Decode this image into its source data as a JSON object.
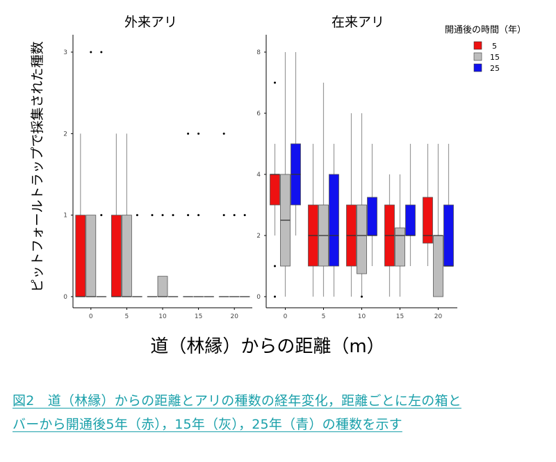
{
  "chart_data": [
    {
      "type": "boxplot",
      "title": "外来アリ",
      "ylim": [
        0,
        3
      ],
      "yticks": [
        "0",
        "1",
        "2",
        "3"
      ],
      "categories": [
        "0",
        "5",
        "10",
        "15",
        "20"
      ],
      "series": [
        {
          "name": "5",
          "color": "#ee1111",
          "boxes": [
            {
              "q1": 0,
              "median": 0,
              "q3": 1,
              "lo": 0,
              "hi": 2,
              "out": []
            },
            {
              "q1": 0,
              "median": 0,
              "q3": 1,
              "lo": 0,
              "hi": 2,
              "out": []
            },
            {
              "q1": 0,
              "median": 0,
              "q3": 0,
              "lo": 0,
              "hi": 0,
              "out": [
                1
              ]
            },
            {
              "q1": 0,
              "median": 0,
              "q3": 0,
              "lo": 0,
              "hi": 0,
              "out": [
                1,
                2
              ]
            },
            {
              "q1": 0,
              "median": 0,
              "q3": 0,
              "lo": 0,
              "hi": 0,
              "out": [
                1,
                2
              ]
            }
          ]
        },
        {
          "name": "15",
          "color": "#bdbdbd",
          "boxes": [
            {
              "q1": 0,
              "median": 0,
              "q3": 1,
              "lo": 0,
              "hi": 1,
              "out": [
                3
              ]
            },
            {
              "q1": 0,
              "median": 0,
              "q3": 1,
              "lo": 0,
              "hi": 2,
              "out": []
            },
            {
              "q1": 0,
              "median": 0,
              "q3": 0.25,
              "lo": 0,
              "hi": 0.25,
              "out": [
                1
              ]
            },
            {
              "q1": 0,
              "median": 0,
              "q3": 0,
              "lo": 0,
              "hi": 0,
              "out": [
                1,
                2
              ]
            },
            {
              "q1": 0,
              "median": 0,
              "q3": 0,
              "lo": 0,
              "hi": 0,
              "out": [
                1
              ]
            }
          ]
        },
        {
          "name": "25",
          "color": "#1111ee",
          "boxes": [
            {
              "q1": 0,
              "median": 0,
              "q3": 0,
              "lo": 0,
              "hi": 0,
              "out": [
                1,
                3
              ]
            },
            {
              "q1": 0,
              "median": 0,
              "q3": 0,
              "lo": 0,
              "hi": 0,
              "out": [
                1
              ]
            },
            {
              "q1": 0,
              "median": 0,
              "q3": 0,
              "lo": 0,
              "hi": 0,
              "out": [
                1
              ]
            },
            {
              "q1": 0,
              "median": 0,
              "q3": 0,
              "lo": 0,
              "hi": 0,
              "out": []
            },
            {
              "q1": 0,
              "median": 0,
              "q3": 0,
              "lo": 0,
              "hi": 0,
              "out": [
                1
              ]
            }
          ]
        }
      ]
    },
    {
      "type": "boxplot",
      "title": "在来アリ",
      "ylim": [
        0,
        8
      ],
      "yticks": [
        "0",
        "2",
        "4",
        "6",
        "8"
      ],
      "categories": [
        "0",
        "5",
        "10",
        "15",
        "20"
      ],
      "series": [
        {
          "name": "5",
          "color": "#ee1111",
          "boxes": [
            {
              "q1": 3,
              "median": 4,
              "q3": 4,
              "lo": 2,
              "hi": 5,
              "out": [
                0,
                1,
                7
              ]
            },
            {
              "q1": 1,
              "median": 2,
              "q3": 3,
              "lo": 0,
              "hi": 5,
              "out": []
            },
            {
              "q1": 1,
              "median": 2,
              "q3": 3,
              "lo": 0,
              "hi": 6,
              "out": []
            },
            {
              "q1": 1,
              "median": 2,
              "q3": 3,
              "lo": 0,
              "hi": 4,
              "out": []
            },
            {
              "q1": 1.75,
              "median": 2,
              "q3": 3.25,
              "lo": 1,
              "hi": 5,
              "out": []
            }
          ]
        },
        {
          "name": "15",
          "color": "#bdbdbd",
          "boxes": [
            {
              "q1": 1,
              "median": 2.5,
              "q3": 4,
              "lo": 0,
              "hi": 8,
              "out": []
            },
            {
              "q1": 1,
              "median": 2,
              "q3": 3,
              "lo": 0,
              "hi": 7,
              "out": []
            },
            {
              "q1": 0.75,
              "median": 2,
              "q3": 3,
              "lo": 0,
              "hi": 6,
              "out": [
                0
              ]
            },
            {
              "q1": 1,
              "median": 2,
              "q3": 2.25,
              "lo": 0,
              "hi": 4,
              "out": []
            },
            {
              "q1": 0,
              "median": 2,
              "q3": 2,
              "lo": 0,
              "hi": 5,
              "out": []
            }
          ]
        },
        {
          "name": "25",
          "color": "#1111ee",
          "boxes": [
            {
              "q1": 3,
              "median": 4,
              "q3": 5,
              "lo": 2,
              "hi": 8,
              "out": []
            },
            {
              "q1": 1,
              "median": 2,
              "q3": 4,
              "lo": 0,
              "hi": 5,
              "out": []
            },
            {
              "q1": 2,
              "median": 2,
              "q3": 3.25,
              "lo": 1,
              "hi": 5,
              "out": []
            },
            {
              "q1": 2,
              "median": 2,
              "q3": 3,
              "lo": 1,
              "hi": 5,
              "out": []
            },
            {
              "q1": 1,
              "median": 1,
              "q3": 3,
              "lo": 1,
              "hi": 5,
              "out": []
            }
          ]
        }
      ]
    }
  ],
  "ylabel": "ピットフォールトラップで採集された種数",
  "xlabel": "道（林縁）からの距離（m）",
  "legend": {
    "title": "開通後の時間（年）",
    "placement": "top-right",
    "items": [
      "5",
      "15",
      "25"
    ]
  },
  "caption": {
    "line1": "図2　道（林縁）からの距離とアリの種数の経年変化，距離ごとに左の箱と",
    "line2": "バーから開通後5年（赤），15年（灰），25年（青）の種数を示す"
  }
}
